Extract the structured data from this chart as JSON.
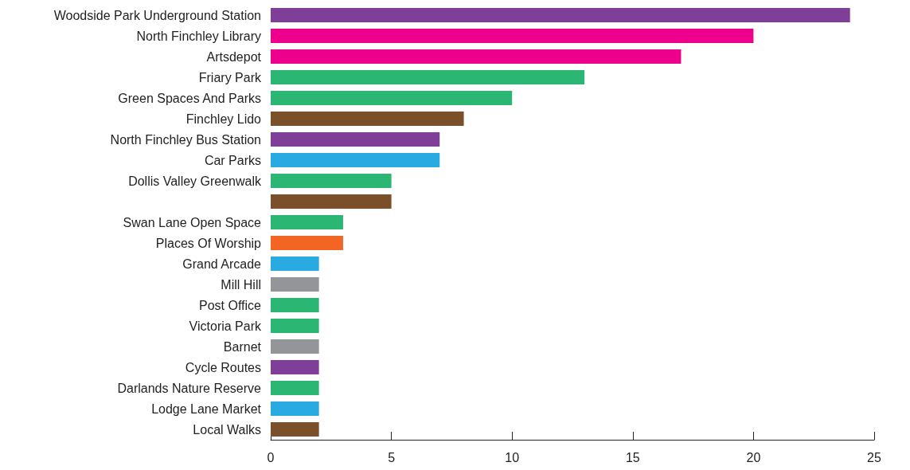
{
  "chart_data": {
    "type": "bar",
    "orientation": "horizontal",
    "categories": [
      "Woodside Park Underground Station",
      "North Finchley Library",
      "Artsdepot",
      "Friary Park",
      "Green Spaces And Parks",
      "Finchley Lido",
      "North Finchley Bus Station",
      "Car Parks",
      "Dollis Valley Greenwalk",
      null,
      "Swan Lane Open Space",
      "Places Of Worship",
      "Grand Arcade",
      "Mill Hill",
      "Post Office",
      "Victoria Park",
      "Barnet",
      "Cycle Routes",
      "Darlands Nature Reserve",
      "Lodge Lane Market",
      "Local Walks"
    ],
    "values": [
      24,
      20,
      17,
      13,
      10,
      8,
      7,
      7,
      5,
      5,
      3,
      3,
      2,
      2,
      2,
      2,
      2,
      2,
      2,
      2,
      2
    ],
    "colors": [
      "#7f3f98",
      "#ec008c",
      "#ec008c",
      "#2bb673",
      "#2bb673",
      "#7a4f2a",
      "#7f3f98",
      "#29abe2",
      "#2bb673",
      "#7a4f2a",
      "#2bb673",
      "#f26522",
      "#29abe2",
      "#939598",
      "#2bb673",
      "#2bb673",
      "#939598",
      "#7f3f98",
      "#2bb673",
      "#29abe2",
      "#7a4f2a"
    ],
    "xlim": [
      0,
      25
    ],
    "xticks": [
      0,
      5,
      10,
      15,
      20,
      25
    ]
  }
}
